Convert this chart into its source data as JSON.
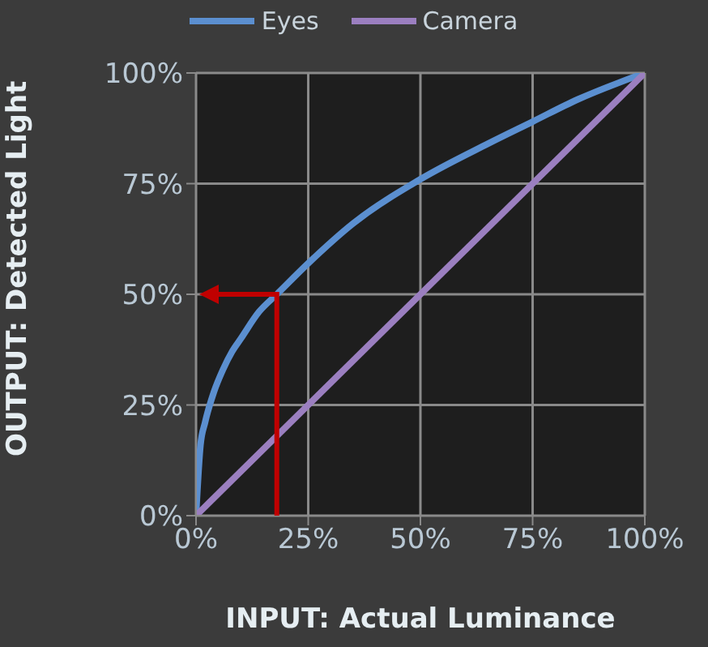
{
  "chart_data": {
    "type": "line",
    "xlabel": "INPUT: Actual Luminance",
    "ylabel": "OUTPUT: Detected Light",
    "xlim": [
      0,
      100
    ],
    "ylim": [
      0,
      100
    ],
    "xticks": [
      {
        "value": 0,
        "label": "0%"
      },
      {
        "value": 25,
        "label": "25%"
      },
      {
        "value": 50,
        "label": "50%"
      },
      {
        "value": 75,
        "label": "75%"
      },
      {
        "value": 100,
        "label": "100%"
      }
    ],
    "yticks": [
      {
        "value": 0,
        "label": "0%"
      },
      {
        "value": 25,
        "label": "25%"
      },
      {
        "value": 50,
        "label": "50%"
      },
      {
        "value": 75,
        "label": "75%"
      },
      {
        "value": 100,
        "label": "100%"
      }
    ],
    "grid": true,
    "legend": "top",
    "marker": "none",
    "line_style": "solid",
    "series": [
      {
        "name": "Eyes",
        "color": "#5b8fd0",
        "x": [
          0,
          1,
          2,
          4,
          6,
          8,
          10,
          14,
          18,
          25,
          35,
          50,
          65,
          75,
          85,
          100
        ],
        "values": [
          0,
          16,
          21,
          28,
          33,
          37,
          40,
          46,
          50,
          57,
          66,
          76,
          84,
          89,
          94,
          100
        ]
      },
      {
        "name": "Camera",
        "color": "#9b7fc0",
        "x": [
          0,
          100
        ],
        "values": [
          0,
          100
        ]
      }
    ]
  }
}
